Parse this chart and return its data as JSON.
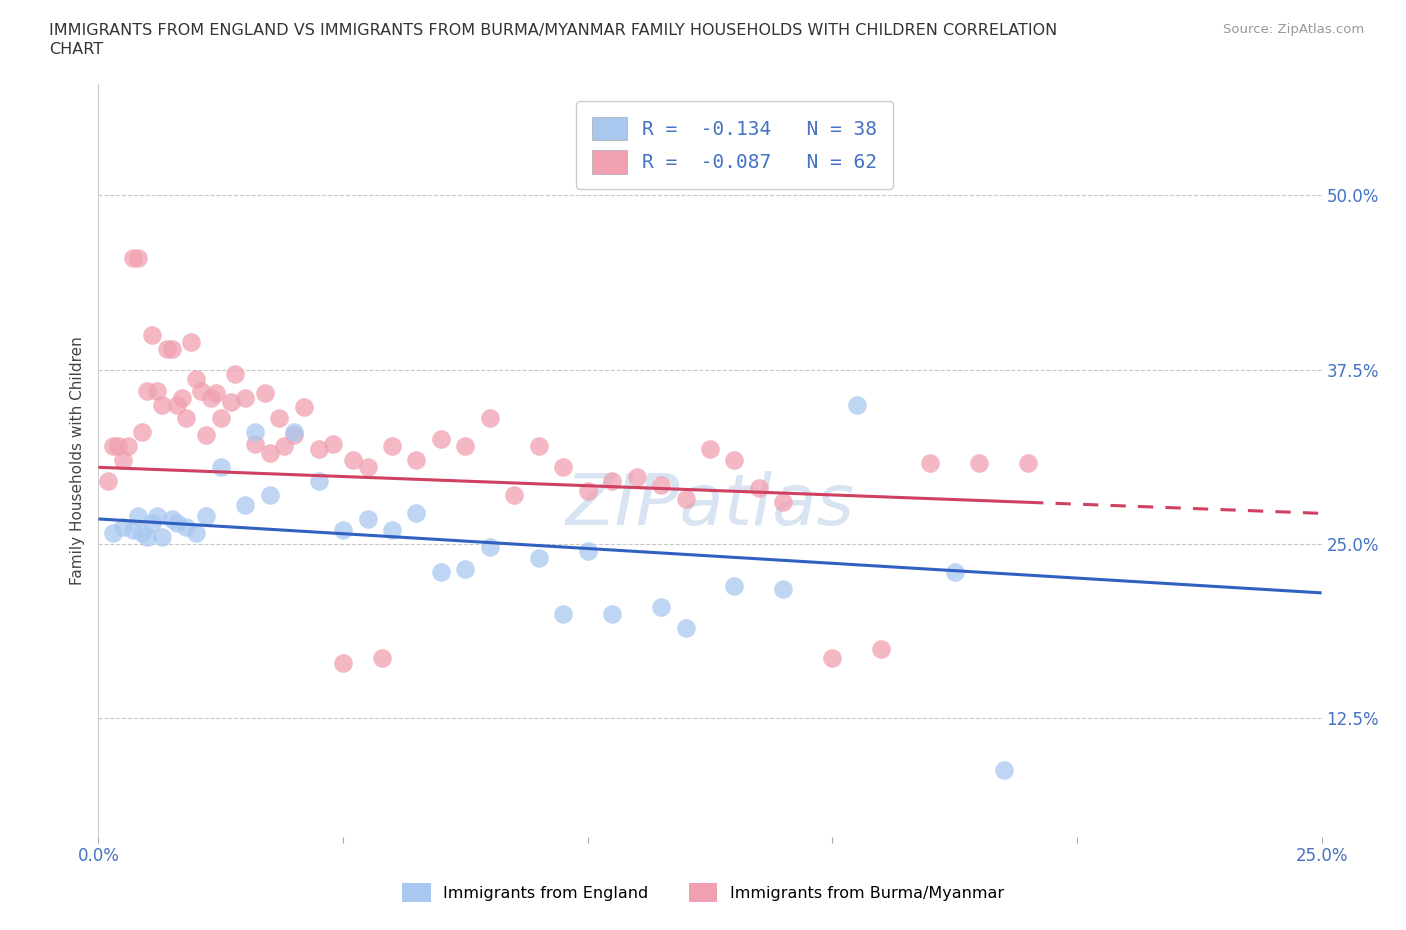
{
  "title_line1": "IMMIGRANTS FROM ENGLAND VS IMMIGRANTS FROM BURMA/MYANMAR FAMILY HOUSEHOLDS WITH CHILDREN CORRELATION",
  "title_line2": "CHART",
  "source": "Source: ZipAtlas.com",
  "ylabel": "Family Households with Children",
  "yticks": [
    "12.5%",
    "25.0%",
    "37.5%",
    "50.0%"
  ],
  "ytick_vals": [
    0.125,
    0.25,
    0.375,
    0.5
  ],
  "xlim": [
    0.0,
    0.25
  ],
  "ylim": [
    0.04,
    0.58
  ],
  "legend_entry1": "R =  -0.134   N = 38",
  "legend_entry2": "R =  -0.087   N = 62",
  "color_england": "#A8C8F0",
  "color_burma": "#F0A0B0",
  "line_color_england": "#3060C0",
  "line_color_burma": "#D04060",
  "tick_label_color": "#4472C4",
  "watermark": "ZIPatlas",
  "england_x": [
    0.003,
    0.005,
    0.007,
    0.008,
    0.009,
    0.01,
    0.011,
    0.012,
    0.013,
    0.015,
    0.016,
    0.018,
    0.02,
    0.022,
    0.025,
    0.03,
    0.032,
    0.035,
    0.04,
    0.045,
    0.05,
    0.055,
    0.06,
    0.065,
    0.07,
    0.075,
    0.08,
    0.09,
    0.095,
    0.1,
    0.105,
    0.115,
    0.12,
    0.13,
    0.14,
    0.155,
    0.175,
    0.185
  ],
  "england_y": [
    0.258,
    0.262,
    0.26,
    0.27,
    0.258,
    0.255,
    0.265,
    0.27,
    0.255,
    0.268,
    0.265,
    0.262,
    0.258,
    0.27,
    0.305,
    0.278,
    0.33,
    0.285,
    0.33,
    0.295,
    0.26,
    0.268,
    0.26,
    0.272,
    0.23,
    0.232,
    0.248,
    0.24,
    0.2,
    0.245,
    0.2,
    0.205,
    0.19,
    0.22,
    0.218,
    0.35,
    0.23,
    0.088
  ],
  "burma_x": [
    0.002,
    0.003,
    0.004,
    0.005,
    0.006,
    0.007,
    0.008,
    0.009,
    0.01,
    0.011,
    0.012,
    0.013,
    0.014,
    0.015,
    0.016,
    0.017,
    0.018,
    0.019,
    0.02,
    0.021,
    0.022,
    0.023,
    0.024,
    0.025,
    0.027,
    0.028,
    0.03,
    0.032,
    0.034,
    0.035,
    0.037,
    0.038,
    0.04,
    0.042,
    0.045,
    0.048,
    0.05,
    0.052,
    0.055,
    0.058,
    0.06,
    0.065,
    0.07,
    0.075,
    0.08,
    0.085,
    0.09,
    0.095,
    0.1,
    0.105,
    0.11,
    0.115,
    0.12,
    0.125,
    0.13,
    0.135,
    0.14,
    0.15,
    0.16,
    0.17,
    0.18,
    0.19
  ],
  "burma_y": [
    0.295,
    0.32,
    0.32,
    0.31,
    0.32,
    0.455,
    0.455,
    0.33,
    0.36,
    0.4,
    0.36,
    0.35,
    0.39,
    0.39,
    0.35,
    0.355,
    0.34,
    0.395,
    0.368,
    0.36,
    0.328,
    0.355,
    0.358,
    0.34,
    0.352,
    0.372,
    0.355,
    0.322,
    0.358,
    0.315,
    0.34,
    0.32,
    0.328,
    0.348,
    0.318,
    0.322,
    0.165,
    0.31,
    0.305,
    0.168,
    0.32,
    0.31,
    0.325,
    0.32,
    0.34,
    0.285,
    0.32,
    0.305,
    0.288,
    0.295,
    0.298,
    0.292,
    0.282,
    0.318,
    0.31,
    0.29,
    0.28,
    0.168,
    0.175,
    0.308,
    0.308,
    0.308
  ],
  "eng_line_x0": 0.0,
  "eng_line_x1": 0.25,
  "eng_line_y0": 0.268,
  "eng_line_y1": 0.215,
  "bur_line_x0": 0.0,
  "bur_line_x1": 0.125,
  "bur_line_y1_solid": 0.295,
  "bur_line_x1_dashed": 0.25,
  "bur_line_y0": 0.305,
  "bur_line_y1": 0.272
}
